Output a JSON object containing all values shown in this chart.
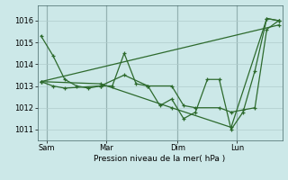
{
  "xlabel": "Pression niveau de la mer( hPa )",
  "background_color": "#cce8e8",
  "grid_color": "#b0cccc",
  "line_color": "#2d6a2d",
  "ylim": [
    1010.5,
    1016.7
  ],
  "xlim": [
    -0.3,
    20.3
  ],
  "xtick_labels": [
    "Sam",
    "Mar",
    "Dim",
    "Lun"
  ],
  "xtick_positions": [
    0.5,
    5.5,
    11.5,
    16.5
  ],
  "vline_positions": [
    0.5,
    5.5,
    11.5,
    16.5
  ],
  "yticks": [
    1011,
    1012,
    1013,
    1014,
    1015,
    1016
  ],
  "series1_x": [
    0,
    1,
    2,
    3,
    4,
    5,
    6,
    7,
    8,
    9,
    10,
    11,
    12,
    13,
    14,
    15,
    16,
    17,
    18,
    19,
    20
  ],
  "series1_y": [
    1015.3,
    1014.4,
    1013.3,
    1013.0,
    1012.9,
    1013.0,
    1013.0,
    1014.5,
    1013.1,
    1013.0,
    1012.1,
    1012.4,
    1011.5,
    1011.8,
    1013.3,
    1013.3,
    1011.0,
    1011.8,
    1013.7,
    1016.1,
    1016.0
  ],
  "series2_x": [
    0,
    1,
    2,
    5,
    7,
    9,
    11,
    12,
    13,
    15,
    16,
    17,
    18,
    19,
    20
  ],
  "series2_y": [
    1013.2,
    1013.0,
    1012.9,
    1013.0,
    1013.5,
    1013.0,
    1013.0,
    1012.1,
    1012.0,
    1012.0,
    1011.8,
    1011.9,
    1012.0,
    1015.6,
    1016.0
  ],
  "series3_x": [
    0,
    5,
    11,
    16,
    19,
    20
  ],
  "series3_y": [
    1013.2,
    1013.1,
    1012.0,
    1011.1,
    1016.1,
    1016.0
  ],
  "series4_x": [
    0,
    20
  ],
  "series4_y": [
    1013.2,
    1015.8
  ]
}
